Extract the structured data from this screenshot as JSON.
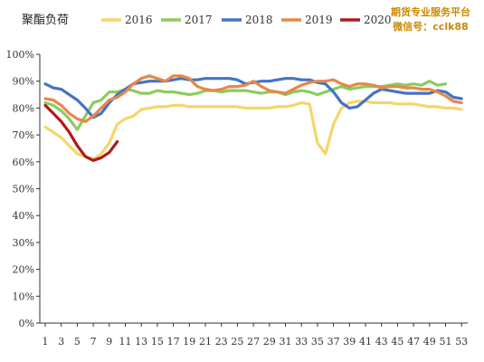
{
  "chart_data": {
    "type": "line",
    "title": "聚酯负荷",
    "ylim": [
      0,
      100
    ],
    "yticks": [
      "0%",
      "10%",
      "20%",
      "30%",
      "40%",
      "50%",
      "60%",
      "70%",
      "80%",
      "90%",
      "100%"
    ],
    "xticks": [
      "1",
      "3",
      "5",
      "7",
      "9",
      "11",
      "13",
      "15",
      "17",
      "19",
      "21",
      "23",
      "25",
      "27",
      "29",
      "31",
      "33",
      "35",
      "37",
      "39",
      "41",
      "43",
      "45",
      "47",
      "49",
      "51",
      "53"
    ],
    "grid": false,
    "legend_position": "top",
    "series": [
      {
        "name": "2016",
        "color": "#F5D56B",
        "x": [
          1,
          2,
          3,
          4,
          5,
          6,
          7,
          8,
          9,
          10,
          11,
          12,
          13,
          14,
          15,
          16,
          17,
          18,
          19,
          20,
          21,
          22,
          23,
          24,
          25,
          26,
          27,
          28,
          29,
          30,
          31,
          32,
          33,
          34,
          35,
          36,
          37,
          38,
          39,
          40,
          41,
          42,
          43,
          44,
          45,
          46,
          47,
          48,
          49,
          50,
          51,
          52,
          53
        ],
        "values": [
          73,
          71,
          69,
          66,
          63,
          62,
          61,
          63,
          67,
          74,
          76,
          77,
          79.5,
          80,
          80.5,
          80.5,
          81,
          81,
          80.5,
          80.5,
          80.5,
          80.5,
          80.5,
          80.5,
          80.5,
          80,
          80,
          80,
          80,
          80.5,
          80.5,
          81,
          82,
          81.5,
          67,
          63,
          74,
          80,
          82,
          82.5,
          82.5,
          82,
          82,
          82,
          81.5,
          81.5,
          81.5,
          81,
          80.5,
          80.5,
          80,
          80,
          79.5
        ]
      },
      {
        "name": "2017",
        "color": "#8CCB5E",
        "x": [
          1,
          2,
          3,
          4,
          5,
          6,
          7,
          8,
          9,
          10,
          11,
          12,
          13,
          14,
          15,
          16,
          17,
          18,
          19,
          20,
          21,
          22,
          23,
          24,
          25,
          26,
          27,
          28,
          29,
          30,
          31,
          32,
          33,
          34,
          35,
          36,
          37,
          38,
          39,
          40,
          41,
          42,
          43,
          44,
          45,
          46,
          47,
          48,
          49,
          50,
          51
        ],
        "values": [
          82,
          81,
          79,
          76,
          72,
          77,
          82,
          83,
          86,
          86,
          87,
          86.5,
          85.5,
          85.5,
          86.5,
          86,
          86,
          85.5,
          85,
          85.5,
          86.5,
          86.5,
          86,
          86.5,
          86.5,
          86.5,
          86,
          85.5,
          86,
          86,
          85,
          86,
          86.5,
          86,
          85,
          86,
          87,
          88,
          87,
          87.5,
          88,
          88,
          88,
          88.5,
          89,
          88.5,
          89,
          88.5,
          90,
          88.5,
          89
        ]
      },
      {
        "name": "2018",
        "color": "#4573C4",
        "x": [
          1,
          2,
          3,
          4,
          5,
          6,
          7,
          8,
          9,
          10,
          11,
          12,
          13,
          14,
          15,
          16,
          17,
          18,
          19,
          20,
          21,
          22,
          23,
          24,
          25,
          26,
          27,
          28,
          29,
          30,
          31,
          32,
          33,
          34,
          35,
          36,
          37,
          38,
          39,
          40,
          41,
          42,
          43,
          44,
          45,
          46,
          47,
          48,
          49,
          50,
          51,
          52,
          53
        ],
        "values": [
          89,
          87.5,
          87,
          85,
          83,
          80,
          76.5,
          78,
          82,
          85,
          87,
          89,
          89.5,
          90,
          90,
          90,
          90.5,
          91,
          90.5,
          90.5,
          91,
          91,
          91,
          91,
          90.5,
          89,
          89.5,
          90,
          90,
          90.5,
          91,
          91,
          90.5,
          90.5,
          89.5,
          89,
          86,
          82,
          80,
          80.5,
          83,
          85.5,
          87,
          86.5,
          86,
          85.5,
          85.5,
          85.5,
          85.5,
          86.5,
          86,
          84,
          83.5
        ]
      },
      {
        "name": "2019",
        "color": "#E8874A",
        "x": [
          1,
          2,
          3,
          4,
          5,
          6,
          7,
          8,
          9,
          10,
          11,
          12,
          13,
          14,
          15,
          16,
          17,
          18,
          19,
          20,
          21,
          22,
          23,
          24,
          25,
          26,
          27,
          28,
          29,
          30,
          31,
          32,
          33,
          34,
          35,
          36,
          37,
          38,
          39,
          40,
          41,
          42,
          43,
          44,
          45,
          46,
          47,
          48,
          49,
          50,
          51,
          52,
          53
        ],
        "values": [
          83.5,
          83,
          81,
          78,
          76,
          75,
          77,
          80,
          83,
          84,
          86,
          89,
          91,
          92,
          91,
          90,
          92,
          92,
          91,
          88,
          87,
          86.5,
          87,
          88,
          88,
          88.5,
          90,
          88,
          86.5,
          86,
          85.5,
          87,
          88.5,
          89.5,
          90,
          90,
          90.5,
          89,
          88,
          89,
          89,
          88.5,
          87.5,
          88,
          88,
          87.5,
          87.5,
          87,
          87,
          86,
          84.5,
          82.5,
          82
        ]
      },
      {
        "name": "2020",
        "color": "#B01A1A",
        "x": [
          1,
          2,
          3,
          4,
          5,
          6,
          7,
          8,
          9,
          10
        ],
        "values": [
          81,
          78,
          75,
          71,
          66,
          62,
          60.5,
          61.5,
          63.5,
          67.5
        ]
      }
    ]
  },
  "watermark": {
    "line1": "期货专业服务平台",
    "line2": "微信号：cclk88"
  }
}
